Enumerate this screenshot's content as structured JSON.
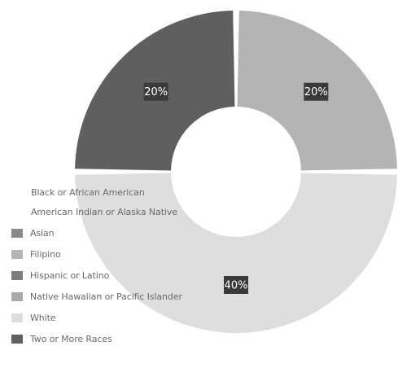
{
  "chart_data": {
    "type": "pie",
    "style": "donut",
    "title": "",
    "categories": [
      "Black or African American",
      "American Indian or Alaska Native",
      "Asian",
      "Filipino",
      "Hispanic or Latino",
      "Native Hawaiian or Pacific Islander",
      "White",
      "Two or More Races"
    ],
    "values": [
      0,
      0,
      0,
      20,
      0,
      0,
      40,
      20
    ],
    "data_labels": [
      "",
      "",
      "",
      "20%",
      "",
      "",
      "40%",
      "20%"
    ],
    "colors": [
      "#c8c8c8",
      "#bdbdbd",
      "#8a8a8a",
      "#b4b4b4",
      "#7d7d7d",
      "#a9a9a9",
      "#dedede",
      "#5f5f5f"
    ],
    "label_color": "#ffffff",
    "label_background": "#3a3a3a",
    "legend_position": "left",
    "legend_swatch_visible": [
      false,
      false,
      true,
      true,
      true,
      true,
      true,
      true
    ]
  }
}
